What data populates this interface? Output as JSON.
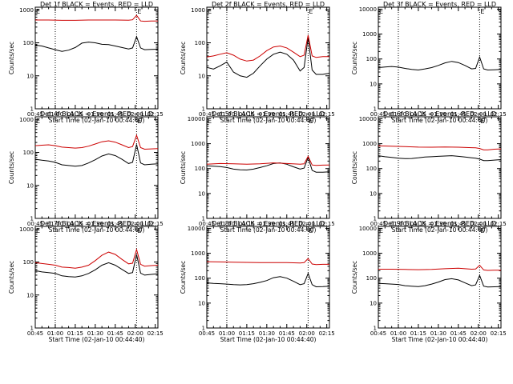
{
  "figure": {
    "background": "#ffffff",
    "xlabel": "Start Time (02-Jan-10 00:44:40)",
    "ylabel": "Counts/sec",
    "x_tick_labels": [
      "00:45",
      "01:00",
      "01:15",
      "01:30",
      "01:45",
      "02:00",
      "02:15"
    ],
    "y_tick_labels": [
      "1",
      "10",
      "100",
      "1000"
    ],
    "y_tick_labels_wide": [
      "1",
      "10",
      "100",
      "1000",
      "10000"
    ],
    "marker_text": "E",
    "colors": {
      "events": "#000000",
      "lld": "#cc0000"
    }
  },
  "chart_data": [
    {
      "type": "line",
      "title": "Det 1f BLACK = Events, RED = LLD",
      "xlabel": "Start Time (02-Jan-10 00:44:40)",
      "ylabel": "Counts/sec",
      "x_unit": "minutes",
      "xlim": [
        45,
        137
      ],
      "ylim": [
        1,
        1200
      ],
      "yscale": "log",
      "dotted_vlines": [
        60,
        121
      ],
      "markers": [
        {
          "x": 45,
          "label": "E"
        },
        {
          "x": 121,
          "label": "E"
        }
      ],
      "series": [
        {
          "name": "Events",
          "color": "#000000",
          "x": [
            45,
            50,
            55,
            60,
            65,
            70,
            75,
            80,
            85,
            90,
            95,
            100,
            105,
            110,
            115,
            118,
            121,
            124,
            127,
            132,
            137
          ],
          "values": [
            85,
            80,
            70,
            62,
            55,
            60,
            72,
            98,
            105,
            100,
            90,
            88,
            80,
            72,
            65,
            70,
            155,
            70,
            62,
            63,
            64
          ]
        },
        {
          "name": "LLD",
          "color": "#cc0000",
          "x": [
            45,
            55,
            65,
            75,
            85,
            95,
            105,
            115,
            118,
            121,
            124,
            127,
            132,
            137
          ],
          "values": [
            490,
            490,
            480,
            480,
            490,
            490,
            490,
            485,
            500,
            680,
            460,
            450,
            460,
            460
          ]
        }
      ]
    },
    {
      "type": "line",
      "title": "Det 2f BLACK = Events, RED = LLD",
      "xlabel": "Start Time (02-Jan-10 00:44:40)",
      "ylabel": "Counts/sec",
      "x_unit": "minutes",
      "xlim": [
        45,
        137
      ],
      "ylim": [
        1,
        1200
      ],
      "yscale": "log",
      "dotted_vlines": [
        60,
        121
      ],
      "markers": [
        {
          "x": 45,
          "label": "E"
        },
        {
          "x": 121,
          "label": "E"
        }
      ],
      "series": [
        {
          "name": "Events",
          "color": "#000000",
          "x": [
            45,
            50,
            55,
            60,
            65,
            70,
            75,
            80,
            85,
            90,
            95,
            100,
            105,
            110,
            115,
            118,
            121,
            124,
            127,
            132,
            137
          ],
          "values": [
            18,
            16,
            20,
            26,
            13,
            10,
            9,
            12,
            20,
            32,
            45,
            52,
            45,
            30,
            14,
            18,
            145,
            15,
            11,
            11,
            12
          ]
        },
        {
          "name": "LLD",
          "color": "#cc0000",
          "x": [
            45,
            50,
            55,
            60,
            65,
            70,
            75,
            80,
            85,
            90,
            95,
            100,
            105,
            110,
            115,
            118,
            121,
            124,
            127,
            132,
            137
          ],
          "values": [
            37,
            40,
            45,
            50,
            42,
            32,
            28,
            30,
            40,
            58,
            75,
            80,
            70,
            52,
            38,
            42,
            170,
            40,
            36,
            38,
            38
          ]
        }
      ]
    },
    {
      "type": "line",
      "title": "Det 3f BLACK = Events, RED = LLD",
      "xlabel": "Start Time (02-Jan-10 00:44:40)",
      "ylabel": "Counts/sec",
      "x_unit": "minutes",
      "xlim": [
        45,
        137
      ],
      "ylim": [
        1,
        12000
      ],
      "yscale": "log",
      "dotted_vlines": [
        60,
        121
      ],
      "markers": [
        {
          "x": 45,
          "label": "E"
        },
        {
          "x": 121,
          "label": "E"
        }
      ],
      "series": [
        {
          "name": "Events",
          "color": "#000000",
          "x": [
            45,
            50,
            55,
            60,
            65,
            70,
            75,
            80,
            85,
            90,
            95,
            100,
            105,
            110,
            115,
            118,
            121,
            124,
            127,
            132,
            137
          ],
          "values": [
            45,
            48,
            50,
            47,
            42,
            38,
            36,
            40,
            45,
            55,
            70,
            80,
            72,
            55,
            40,
            42,
            120,
            40,
            36,
            37,
            38
          ]
        }
      ]
    },
    {
      "type": "line",
      "title": "Det 4f BLACK = Events, RED = LLD",
      "xlabel": "Start Time (02-Jan-10 00:44:40)",
      "ylabel": "Counts/sec",
      "x_unit": "minutes",
      "xlim": [
        45,
        137
      ],
      "ylim": [
        1,
        1200
      ],
      "yscale": "log",
      "dotted_vlines": [
        60,
        121
      ],
      "markers": [
        {
          "x": 45,
          "label": "E"
        },
        {
          "x": 121,
          "label": "E"
        }
      ],
      "series": [
        {
          "name": "Events",
          "color": "#000000",
          "x": [
            45,
            50,
            55,
            60,
            65,
            70,
            75,
            80,
            85,
            90,
            95,
            100,
            105,
            110,
            115,
            118,
            121,
            124,
            127,
            132,
            137
          ],
          "values": [
            62,
            58,
            55,
            50,
            42,
            40,
            38,
            40,
            48,
            60,
            78,
            90,
            80,
            62,
            46,
            50,
            175,
            48,
            42,
            44,
            45
          ]
        },
        {
          "name": "LLD",
          "color": "#cc0000",
          "x": [
            45,
            50,
            55,
            60,
            65,
            70,
            75,
            80,
            85,
            90,
            95,
            100,
            105,
            110,
            115,
            118,
            121,
            124,
            127,
            132,
            137
          ],
          "values": [
            160,
            165,
            170,
            160,
            145,
            140,
            135,
            140,
            155,
            180,
            210,
            225,
            205,
            170,
            140,
            150,
            330,
            140,
            125,
            128,
            130
          ]
        }
      ]
    },
    {
      "type": "line",
      "title": "Det 5f BLACK = Events, RED = LLD",
      "xlabel": "Start Time (02-Jan-10 00:44:40)",
      "ylabel": "Counts/sec",
      "x_unit": "minutes",
      "xlim": [
        45,
        137
      ],
      "ylim": [
        1,
        12000
      ],
      "yscale": "log",
      "dotted_vlines": [
        60,
        121
      ],
      "markers": [
        {
          "x": 45,
          "label": "E"
        },
        {
          "x": 121,
          "label": "E"
        }
      ],
      "series": [
        {
          "name": "Events",
          "color": "#000000",
          "x": [
            45,
            50,
            55,
            60,
            65,
            70,
            75,
            80,
            85,
            90,
            95,
            100,
            105,
            110,
            115,
            118,
            121,
            124,
            127,
            132,
            137
          ],
          "values": [
            130,
            125,
            120,
            110,
            95,
            90,
            88,
            95,
            110,
            130,
            160,
            170,
            150,
            118,
            95,
            105,
            280,
            85,
            72,
            72,
            74
          ]
        },
        {
          "name": "LLD",
          "color": "#cc0000",
          "x": [
            45,
            55,
            65,
            75,
            85,
            95,
            105,
            115,
            118,
            121,
            124,
            127,
            132,
            137
          ],
          "values": [
            150,
            160,
            155,
            150,
            155,
            170,
            160,
            150,
            155,
            310,
            140,
            135,
            138,
            140
          ]
        }
      ]
    },
    {
      "type": "line",
      "title": "Det 6f BLACK = Events, RED = LLD",
      "xlabel": "Start Time (02-Jan-10 00:44:40)",
      "ylabel": "Counts/sec",
      "x_unit": "minutes",
      "xlim": [
        45,
        137
      ],
      "ylim": [
        1,
        12000
      ],
      "yscale": "log",
      "dotted_vlines": [
        60,
        121
      ],
      "markers": [
        {
          "x": 45,
          "label": "E"
        },
        {
          "x": 121,
          "label": "E"
        }
      ],
      "series": [
        {
          "name": "Events",
          "color": "#000000",
          "x": [
            45,
            50,
            55,
            60,
            65,
            70,
            75,
            80,
            85,
            90,
            95,
            100,
            105,
            110,
            115,
            118,
            121,
            124,
            127,
            132,
            137
          ],
          "values": [
            330,
            300,
            280,
            260,
            250,
            255,
            270,
            290,
            300,
            310,
            320,
            330,
            310,
            290,
            270,
            260,
            240,
            210,
            210,
            220,
            230
          ]
        },
        {
          "name": "LLD",
          "color": "#cc0000",
          "x": [
            45,
            55,
            65,
            75,
            85,
            95,
            105,
            115,
            118,
            121,
            124,
            127,
            132,
            137
          ],
          "values": [
            820,
            790,
            760,
            730,
            720,
            740,
            720,
            690,
            680,
            640,
            560,
            560,
            600,
            620
          ]
        }
      ]
    },
    {
      "type": "line",
      "title": "Det 7f BLACK = Events, RED = LLD",
      "xlabel": "Start Time (02-Jan-10 00:44:40)",
      "ylabel": "Counts/sec",
      "x_unit": "minutes",
      "xlim": [
        45,
        137
      ],
      "ylim": [
        1,
        1200
      ],
      "yscale": "log",
      "dotted_vlines": [
        60,
        121
      ],
      "markers": [
        {
          "x": 45,
          "label": "E"
        },
        {
          "x": 121,
          "label": "E"
        }
      ],
      "series": [
        {
          "name": "Events",
          "color": "#000000",
          "x": [
            45,
            50,
            55,
            60,
            65,
            70,
            75,
            80,
            85,
            90,
            95,
            100,
            105,
            110,
            115,
            118,
            121,
            124,
            127,
            132,
            137
          ],
          "values": [
            55,
            50,
            48,
            45,
            38,
            36,
            35,
            38,
            45,
            58,
            80,
            95,
            80,
            60,
            45,
            48,
            170,
            46,
            40,
            42,
            44
          ]
        },
        {
          "name": "LLD",
          "color": "#cc0000",
          "x": [
            45,
            50,
            55,
            60,
            65,
            70,
            75,
            80,
            85,
            90,
            95,
            100,
            105,
            110,
            115,
            118,
            121,
            124,
            127,
            132,
            137
          ],
          "values": [
            95,
            90,
            85,
            80,
            70,
            68,
            65,
            70,
            80,
            110,
            160,
            200,
            170,
            120,
            88,
            92,
            240,
            85,
            75,
            78,
            80
          ]
        }
      ]
    },
    {
      "type": "line",
      "title": "Det 8f BLACK = Events, RED = LLD",
      "xlabel": "Start Time (02-Jan-10 00:44:40)",
      "ylabel": "Counts/sec",
      "x_unit": "minutes",
      "xlim": [
        45,
        137
      ],
      "ylim": [
        1,
        12000
      ],
      "yscale": "log",
      "dotted_vlines": [
        60,
        121
      ],
      "markers": [
        {
          "x": 45,
          "label": "E"
        },
        {
          "x": 121,
          "label": "E"
        }
      ],
      "series": [
        {
          "name": "Events",
          "color": "#000000",
          "x": [
            45,
            50,
            55,
            60,
            65,
            70,
            75,
            80,
            85,
            90,
            95,
            100,
            105,
            110,
            115,
            118,
            121,
            124,
            127,
            132,
            137
          ],
          "values": [
            65,
            62,
            60,
            58,
            55,
            54,
            55,
            60,
            68,
            80,
            105,
            115,
            100,
            75,
            55,
            60,
            155,
            55,
            45,
            46,
            48
          ]
        },
        {
          "name": "LLD",
          "color": "#cc0000",
          "x": [
            45,
            55,
            65,
            75,
            85,
            95,
            105,
            115,
            118,
            121,
            124,
            127,
            132,
            137
          ],
          "values": [
            460,
            450,
            440,
            430,
            420,
            420,
            420,
            410,
            420,
            620,
            370,
            350,
            360,
            360
          ]
        }
      ]
    },
    {
      "type": "line",
      "title": "Det 9f BLACK = Events, RED = LLD",
      "xlabel": "Start Time (02-Jan-10 00:44:40)",
      "ylabel": "Counts/sec",
      "x_unit": "minutes",
      "xlim": [
        45,
        137
      ],
      "ylim": [
        1,
        12000
      ],
      "yscale": "log",
      "dotted_vlines": [
        60,
        121
      ],
      "markers": [
        {
          "x": 45,
          "label": "E"
        },
        {
          "x": 121,
          "label": "E"
        }
      ],
      "series": [
        {
          "name": "Events",
          "color": "#000000",
          "x": [
            45,
            50,
            55,
            60,
            65,
            70,
            75,
            80,
            85,
            90,
            95,
            100,
            105,
            110,
            115,
            118,
            121,
            124,
            127,
            132,
            137
          ],
          "values": [
            62,
            60,
            58,
            56,
            50,
            48,
            46,
            50,
            58,
            70,
            88,
            95,
            85,
            65,
            50,
            54,
            130,
            48,
            44,
            45,
            46
          ]
        },
        {
          "name": "LLD",
          "color": "#cc0000",
          "x": [
            45,
            55,
            65,
            75,
            85,
            95,
            105,
            115,
            118,
            121,
            124,
            127,
            132,
            137
          ],
          "values": [
            230,
            230,
            225,
            220,
            225,
            240,
            250,
            230,
            235,
            330,
            215,
            205,
            210,
            210
          ]
        }
      ]
    }
  ]
}
